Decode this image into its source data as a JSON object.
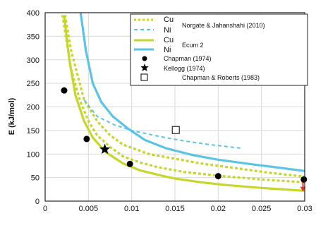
{
  "chart_data": {
    "type": "line",
    "xlabel": "",
    "ylabel": "E (kJ/mol)",
    "xlim": [
      0,
      0.03
    ],
    "ylim": [
      0,
      400
    ],
    "x_ticks": [
      "0",
      "0.005",
      "0.01",
      "0.015",
      "0.02",
      "0.025",
      "0.03"
    ],
    "x_tick_values": [
      0,
      0.005,
      0.01,
      0.015,
      0.02,
      0.025,
      0.03
    ],
    "y_ticks": [
      "0",
      "50",
      "100",
      "150",
      "200",
      "250",
      "300",
      "350",
      "400"
    ],
    "y_tick_values": [
      0,
      50,
      100,
      150,
      200,
      250,
      300,
      350,
      400
    ],
    "grid": true,
    "legend_position": "top-right",
    "legend": {
      "cu_dotted": "Cu",
      "ni_dashed": "Ni",
      "group1": "Norgate & Jahanshahi (2010)",
      "cu_solid": "Cu",
      "ni_solid": "Ni",
      "group2": "Ecum 2",
      "chapman": "Chapman (1974)",
      "kellogg": "Kellogg (1974)",
      "chapman_roberts": "Chapman & Roberts (1983)"
    },
    "colors": {
      "cu": "#c7d62a",
      "ni": "#5bc3e6",
      "marker": "#000000",
      "arrow": "#e0322c"
    },
    "series": [
      {
        "style": "solid",
        "color": "cu",
        "width": 3.2,
        "x": [
          0.0022,
          0.0028,
          0.0035,
          0.0045,
          0.0055,
          0.007,
          0.009,
          0.011,
          0.013,
          0.015,
          0.018,
          0.021,
          0.025,
          0.03
        ],
        "y": [
          393,
          300,
          225,
          170,
          135,
          104,
          80,
          65,
          56,
          48,
          40,
          34,
          28,
          22
        ]
      },
      {
        "style": "solid",
        "color": "ni",
        "width": 3.2,
        "x": [
          0.0041,
          0.0047,
          0.0055,
          0.0065,
          0.0078,
          0.0095,
          0.0115,
          0.014,
          0.017,
          0.02,
          0.024,
          0.03
        ],
        "y": [
          400,
          320,
          250,
          210,
          180,
          155,
          130,
          112,
          98,
          88,
          78,
          64
        ]
      },
      {
        "style": "dotted",
        "color": "cu",
        "width": 3.2,
        "x": [
          0.002,
          0.003,
          0.004,
          0.005,
          0.006,
          0.0075,
          0.009,
          0.011,
          0.013,
          0.016,
          0.02,
          0.025,
          0.03
        ],
        "y": [
          395,
          280,
          215,
          170,
          140,
          115,
          95,
          82,
          72,
          62,
          54,
          46,
          40
        ]
      },
      {
        "style": "dotted",
        "color": "cu",
        "width": 3.2,
        "x": [
          0.0023,
          0.003,
          0.0045,
          0.006,
          0.0075,
          0.009,
          0.012,
          0.015,
          0.018,
          0.022,
          0.026,
          0.03
        ],
        "y": [
          395,
          320,
          215,
          170,
          140,
          120,
          100,
          90,
          80,
          70,
          60,
          52
        ]
      },
      {
        "style": "dashed",
        "color": "ni",
        "width": 2,
        "x": [
          0.0045,
          0.006,
          0.008,
          0.01,
          0.013,
          0.016,
          0.019,
          0.0228
        ],
        "y": [
          215,
          180,
          162,
          150,
          138,
          128,
          120,
          112
        ]
      }
    ],
    "markers": [
      {
        "kind": "circle",
        "x": 0.0022,
        "y": 235
      },
      {
        "kind": "circle",
        "x": 0.0048,
        "y": 132
      },
      {
        "kind": "circle",
        "x": 0.0098,
        "y": 79
      },
      {
        "kind": "circle",
        "x": 0.02,
        "y": 53
      },
      {
        "kind": "circle",
        "x": 0.0299,
        "y": 46
      },
      {
        "kind": "star",
        "x": 0.0069,
        "y": 110
      },
      {
        "kind": "square",
        "x": 0.0151,
        "y": 151
      }
    ],
    "arrow": {
      "x": 0.0298,
      "y_from": 45,
      "y_to": 23
    }
  }
}
